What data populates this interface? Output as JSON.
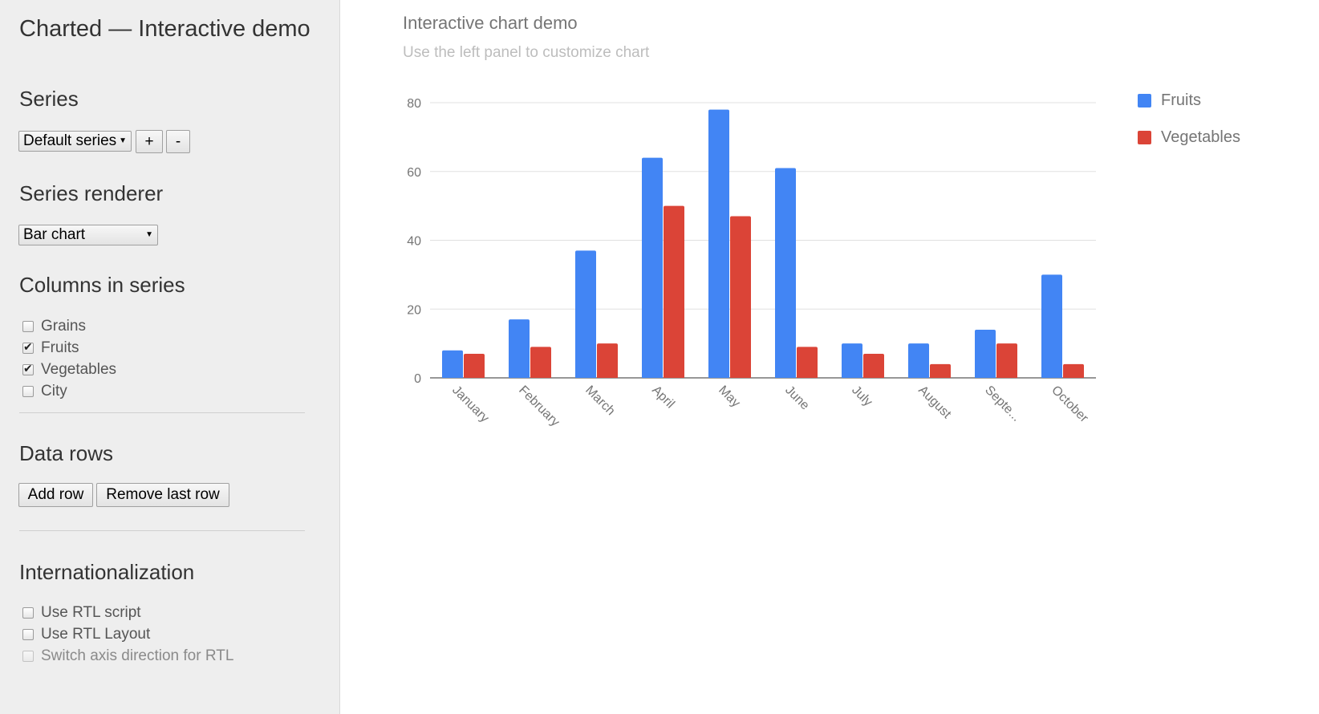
{
  "sidebar": {
    "title": "Charted — Interactive demo",
    "series_section": {
      "heading": "Series",
      "selected_series": "Default series",
      "add_label": "+",
      "remove_label": "-"
    },
    "renderer_section": {
      "heading": "Series renderer",
      "selected_renderer": "Bar chart"
    },
    "columns_section": {
      "heading": "Columns in series",
      "columns": [
        {
          "label": "Grains",
          "checked": false
        },
        {
          "label": "Fruits",
          "checked": true
        },
        {
          "label": "Vegetables",
          "checked": true
        },
        {
          "label": "City",
          "checked": false
        }
      ]
    },
    "rows_section": {
      "heading": "Data rows",
      "add_row_label": "Add row",
      "remove_row_label": "Remove last row"
    },
    "i18n_section": {
      "heading": "Internationalization",
      "options": [
        {
          "label": "Use RTL script",
          "checked": false,
          "disabled": false
        },
        {
          "label": "Use RTL Layout",
          "checked": false,
          "disabled": false
        },
        {
          "label": "Switch axis direction for RTL",
          "checked": false,
          "disabled": true
        }
      ]
    }
  },
  "main": {
    "chart_title": "Interactive chart demo",
    "chart_subtitle": "Use the left panel to customize chart"
  },
  "colors": {
    "fruits": "#4285f4",
    "vegetables": "#db4437",
    "gridline": "#e0e0e0",
    "axis": "#757575",
    "text": "#757575"
  },
  "chart_data": {
    "type": "bar",
    "categories": [
      "January",
      "February",
      "March",
      "April",
      "May",
      "June",
      "July",
      "August",
      "Septe...",
      "October"
    ],
    "series": [
      {
        "name": "Fruits",
        "values": [
          8,
          17,
          37,
          64,
          78,
          61,
          10,
          10,
          14,
          30
        ]
      },
      {
        "name": "Vegetables",
        "values": [
          7,
          9,
          10,
          50,
          47,
          9,
          7,
          4,
          10,
          4
        ]
      }
    ],
    "title": "Interactive chart demo",
    "subtitle": "Use the left panel to customize chart",
    "ylim": [
      0,
      80
    ],
    "yticks": [
      0,
      20,
      40,
      60,
      80
    ],
    "grid": true,
    "legend": "right"
  }
}
